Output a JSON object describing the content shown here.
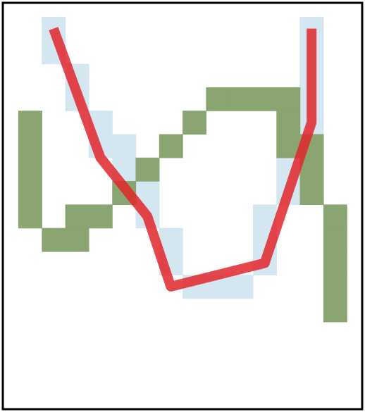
{
  "puzzle": {
    "colors": {
      "frame": "#000000",
      "background": "#ffffff",
      "blue_cells": "#d4e6ef",
      "green_cells": "#6d8f4e",
      "red_line": "#e0262b"
    },
    "blue_cells": [
      [
        1,
        0
      ],
      [
        1,
        1
      ],
      [
        2,
        2
      ],
      [
        2,
        3
      ],
      [
        3,
        4
      ],
      [
        3,
        5
      ],
      [
        4,
        5
      ],
      [
        4,
        6
      ],
      [
        5,
        7
      ],
      [
        5,
        8
      ],
      [
        6,
        9
      ],
      [
        6,
        10
      ],
      [
        7,
        11
      ],
      [
        8,
        11
      ],
      [
        9,
        11
      ],
      [
        10,
        8
      ],
      [
        10,
        9
      ],
      [
        10,
        10
      ],
      [
        11,
        6
      ],
      [
        11,
        7
      ],
      [
        12,
        0
      ],
      [
        12,
        1
      ],
      [
        12,
        2
      ],
      [
        12,
        3
      ],
      [
        12,
        4
      ]
    ],
    "green_cells": [
      [
        0,
        4
      ],
      [
        0,
        5
      ],
      [
        0,
        6
      ],
      [
        0,
        7
      ],
      [
        0,
        8
      ],
      [
        1,
        9
      ],
      [
        2,
        9
      ],
      [
        2,
        8
      ],
      [
        3,
        8
      ],
      [
        4,
        7
      ],
      [
        5,
        6
      ],
      [
        6,
        5
      ],
      [
        7,
        4
      ],
      [
        8,
        3
      ],
      [
        9,
        3
      ],
      [
        10,
        3
      ],
      [
        11,
        3
      ],
      [
        11,
        4
      ],
      [
        11,
        5
      ],
      [
        12,
        5
      ],
      [
        12,
        6
      ],
      [
        12,
        7
      ],
      [
        13,
        8
      ],
      [
        13,
        9
      ],
      [
        13,
        10
      ],
      [
        13,
        11
      ],
      [
        13,
        12
      ]
    ],
    "red_path": [
      [
        1.5,
        0.5
      ],
      [
        3.5,
        6.0
      ],
      [
        5.5,
        8.5
      ],
      [
        6.5,
        11.5
      ],
      [
        10.5,
        10.5
      ],
      [
        11.5,
        7.5
      ],
      [
        12.5,
        4.5
      ],
      [
        12.5,
        0.5
      ]
    ]
  }
}
